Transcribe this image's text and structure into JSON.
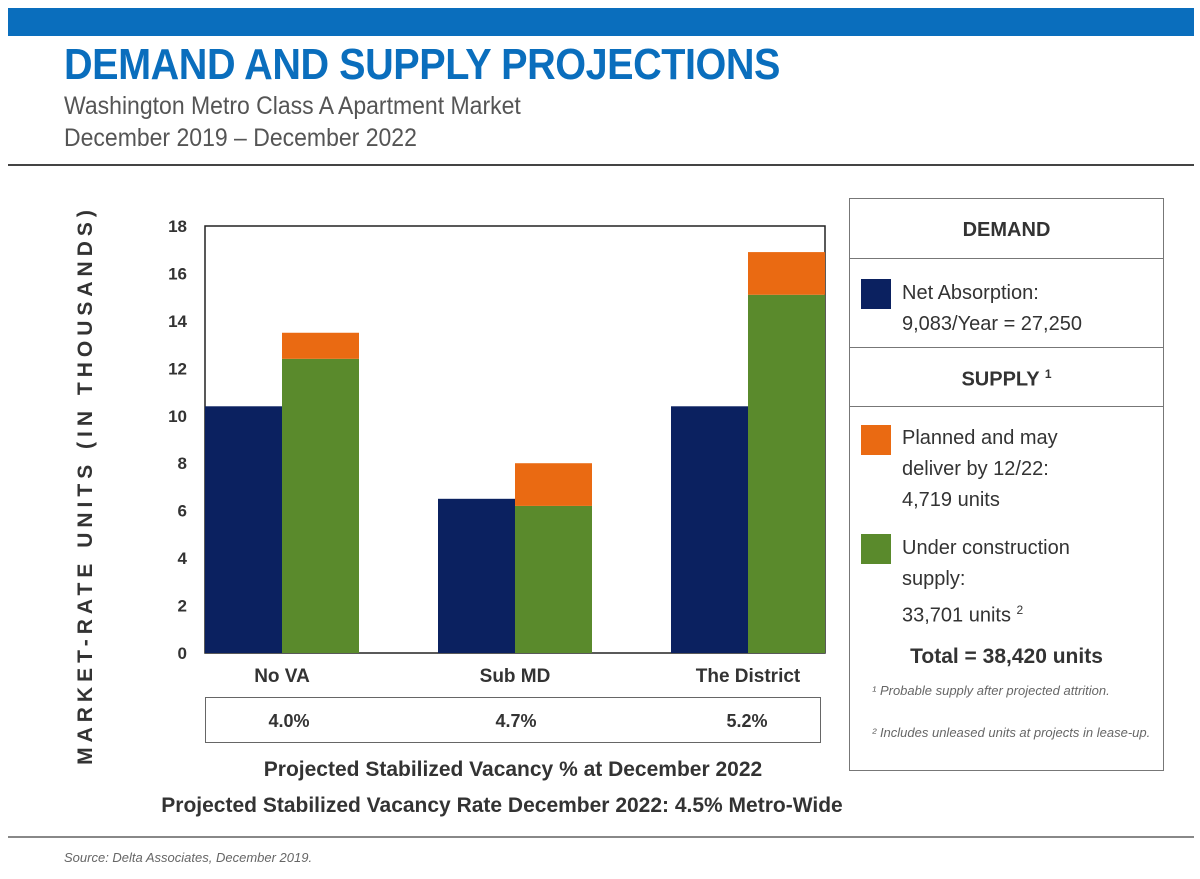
{
  "header": {
    "title": "DEMAND AND SUPPLY PROJECTIONS",
    "subtitle_line1": "Washington Metro Class A Apartment Market",
    "subtitle_line2": "December 2019 – December 2022"
  },
  "chart_data": {
    "type": "bar",
    "categories": [
      "No VA",
      "Sub MD",
      "The District"
    ],
    "series": [
      {
        "name": "Net Absorption",
        "values": [
          10.4,
          6.5,
          10.4
        ],
        "color": "#0b2160"
      },
      {
        "name": "Under construction supply",
        "values": [
          12.4,
          6.2,
          15.1
        ],
        "color": "#5a8a2c"
      },
      {
        "name": "Planned and may deliver by 12/22",
        "values": [
          1.1,
          1.8,
          1.8
        ],
        "color": "#ea6a12"
      }
    ],
    "stacked_series": [
      "Under construction supply",
      "Planned and may deliver by 12/22"
    ],
    "ylabel": "MARKET-RATE UNITS (IN THOUSANDS)",
    "ylim": [
      0,
      18
    ],
    "yticks": [
      "0",
      "2",
      "4",
      "6",
      "8",
      "10",
      "12",
      "14",
      "16",
      "18"
    ],
    "grid": false
  },
  "vacancy": {
    "values": [
      "4.0%",
      "4.7%",
      "5.2%"
    ],
    "caption": "Projected Stabilized Vacancy % at December 2022",
    "metro_wide": "Projected Stabilized Vacancy Rate December 2022: 4.5% Metro-Wide"
  },
  "legend": {
    "demand_heading": "DEMAND",
    "net_absorption_line1": "Net Absorption:",
    "net_absorption_line2": "9,083/Year = 27,250",
    "supply_heading": "SUPPLY",
    "supply_sup": "1",
    "planned_line1": "Planned and may",
    "planned_line2": "deliver by 12/22:",
    "planned_line3": "4,719 units",
    "construction_line1": "Under construction",
    "construction_line2": "supply:",
    "construction_line3": "33,701 units",
    "construction_sup": "2",
    "total": "Total = 38,420 units",
    "footnote1": "¹ Probable supply after projected attrition.",
    "footnote2": "² Includes unleased units at projects in lease-up."
  },
  "source": "Source: Delta Associates, December 2019."
}
